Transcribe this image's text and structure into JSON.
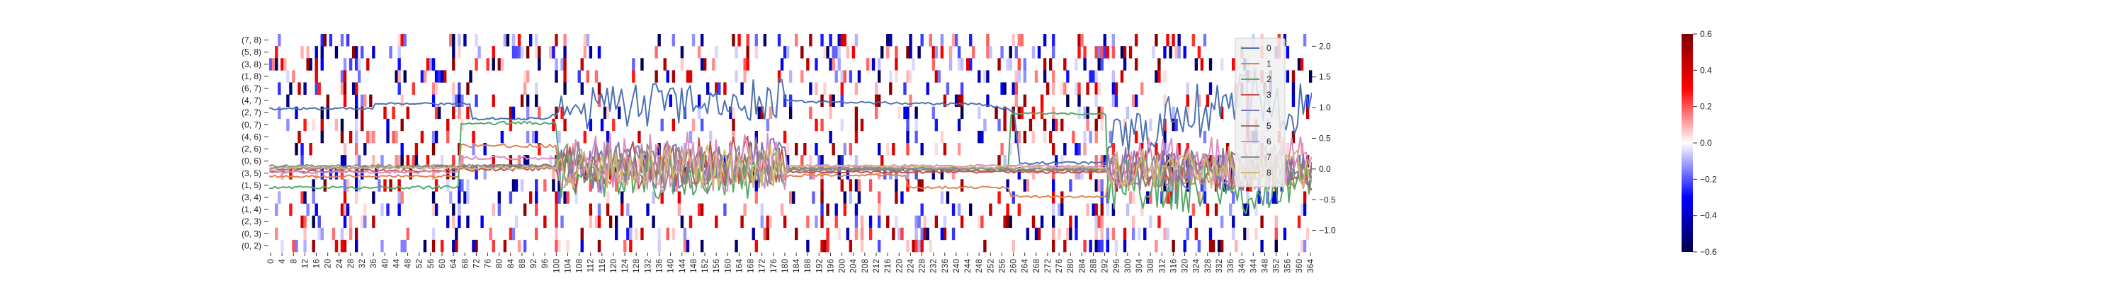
{
  "chart_data": [
    {
      "type": "heatmap",
      "title": "",
      "xlabel": "",
      "ylabel": "",
      "rows": [
        "(7, 8)",
        "(5, 8)",
        "(3, 8)",
        "(1, 8)",
        "(6, 7)",
        "(4, 7)",
        "(2, 7)",
        "(0, 7)",
        "(4, 6)",
        "(2, 6)",
        "(0, 6)",
        "(3, 5)",
        "(1, 5)",
        "(3, 4)",
        "(1, 4)",
        "(2, 3)",
        "(0, 3)",
        "(0, 2)"
      ],
      "x_range": [
        0,
        364
      ],
      "x_tick_step": 4,
      "color_range": [
        -0.6,
        0.6
      ],
      "colormap": "seismic",
      "colorbar_ticks": [
        -0.6,
        -0.4,
        -0.2,
        0.0,
        0.2,
        0.4,
        0.6
      ],
      "colorbar_tick_labels": [
        "−0.6",
        "−0.4",
        "−0.2",
        "0.0",
        "0.2",
        "0.4",
        "0.6"
      ],
      "notes": "sparse matrix, most cells near 0 (white); scattered saturated red/blue cells"
    },
    {
      "type": "line",
      "title": "",
      "xlabel": "",
      "ylabel": "",
      "x_range": [
        0,
        364
      ],
      "ylim": [
        -1.35,
        2.2
      ],
      "y_axis_side": "right",
      "yticks": [
        -1.0,
        -0.5,
        0.0,
        0.5,
        1.0,
        1.5,
        2.0
      ],
      "ytick_labels": [
        "−1.0",
        "−0.5",
        "0.0",
        "0.5",
        "1.0",
        "1.5",
        "2.0"
      ],
      "legend_position": "right",
      "series": [
        {
          "name": "0",
          "color": "#4c72b0",
          "base": [
            [
              0,
              0.98
            ],
            [
              36,
              0.98
            ],
            [
              37,
              1.06
            ],
            [
              70,
              1.06
            ],
            [
              71,
              0.82
            ],
            [
              96,
              0.82
            ],
            [
              99,
              0.88
            ],
            [
              104,
              0.85
            ],
            [
              110,
              1.0
            ],
            [
              175,
              1.15
            ],
            [
              182,
              1.1
            ],
            [
              184,
              1.1
            ],
            [
              250,
              1.05
            ],
            [
              260,
              0.95
            ],
            [
              262,
              0.1
            ],
            [
              292,
              0.1
            ],
            [
              296,
              0.5
            ],
            [
              340,
              1.2
            ],
            [
              364,
              1.0
            ]
          ],
          "amp": [
            [
              0,
              0.02
            ],
            [
              100,
              0.02
            ],
            [
              101,
              0.35
            ],
            [
              180,
              0.35
            ],
            [
              181,
              0.02
            ],
            [
              292,
              0.02
            ],
            [
              293,
              0.4
            ],
            [
              364,
              0.5
            ]
          ]
        },
        {
          "name": "1",
          "color": "#dd8452",
          "base": [
            [
              0,
              -0.12
            ],
            [
              66,
              -0.12
            ],
            [
              67,
              0.38
            ],
            [
              100,
              0.38
            ],
            [
              101,
              -0.02
            ],
            [
              180,
              -0.02
            ],
            [
              181,
              -0.1
            ],
            [
              222,
              -0.1
            ],
            [
              223,
              -0.3
            ],
            [
              258,
              -0.3
            ],
            [
              259,
              -0.45
            ],
            [
              292,
              -0.45
            ],
            [
              293,
              -0.1
            ],
            [
              364,
              -0.15
            ]
          ],
          "amp": [
            [
              0,
              0.02
            ],
            [
              100,
              0.03
            ],
            [
              101,
              0.25
            ],
            [
              180,
              0.25
            ],
            [
              181,
              0.02
            ],
            [
              292,
              0.02
            ],
            [
              293,
              0.2
            ],
            [
              364,
              0.2
            ]
          ]
        },
        {
          "name": "2",
          "color": "#55a868",
          "base": [
            [
              0,
              -0.3
            ],
            [
              66,
              -0.3
            ],
            [
              67,
              0.75
            ],
            [
              100,
              0.75
            ],
            [
              101,
              -0.05
            ],
            [
              180,
              -0.05
            ],
            [
              181,
              0.02
            ],
            [
              258,
              0.02
            ],
            [
              259,
              0.9
            ],
            [
              292,
              0.9
            ],
            [
              293,
              -0.2
            ],
            [
              364,
              -0.3
            ]
          ],
          "amp": [
            [
              0,
              0.02
            ],
            [
              100,
              0.03
            ],
            [
              101,
              0.45
            ],
            [
              180,
              0.45
            ],
            [
              181,
              0.02
            ],
            [
              292,
              0.02
            ],
            [
              293,
              0.45
            ],
            [
              364,
              0.5
            ]
          ]
        },
        {
          "name": "3",
          "color": "#c44e52",
          "base": [
            [
              0,
              -0.05
            ],
            [
              100,
              0.0
            ],
            [
              140,
              0.1
            ],
            [
              180,
              0.15
            ],
            [
              181,
              -0.05
            ],
            [
              292,
              -0.05
            ],
            [
              293,
              0.0
            ],
            [
              364,
              0.0
            ]
          ],
          "amp": [
            [
              0,
              0.02
            ],
            [
              100,
              0.03
            ],
            [
              101,
              0.4
            ],
            [
              180,
              0.4
            ],
            [
              181,
              0.02
            ],
            [
              292,
              0.02
            ],
            [
              293,
              0.3
            ],
            [
              364,
              0.35
            ]
          ]
        },
        {
          "name": "4",
          "color": "#8172b3",
          "base": [
            [
              0,
              0.0
            ],
            [
              100,
              0.05
            ],
            [
              180,
              0.1
            ],
            [
              181,
              0.0
            ],
            [
              292,
              0.0
            ],
            [
              364,
              0.05
            ]
          ],
          "amp": [
            [
              0,
              0.02
            ],
            [
              100,
              0.03
            ],
            [
              101,
              0.4
            ],
            [
              180,
              0.4
            ],
            [
              181,
              0.02
            ],
            [
              292,
              0.02
            ],
            [
              293,
              0.35
            ],
            [
              364,
              0.4
            ]
          ]
        },
        {
          "name": "5",
          "color": "#937860",
          "base": [
            [
              0,
              0.02
            ],
            [
              100,
              0.05
            ],
            [
              180,
              0.05
            ],
            [
              181,
              -0.02
            ],
            [
              292,
              -0.02
            ],
            [
              364,
              0.05
            ]
          ],
          "amp": [
            [
              0,
              0.02
            ],
            [
              100,
              0.03
            ],
            [
              101,
              0.3
            ],
            [
              180,
              0.3
            ],
            [
              181,
              0.02
            ],
            [
              292,
              0.02
            ],
            [
              293,
              0.3
            ],
            [
              364,
              0.3
            ]
          ]
        },
        {
          "name": "6",
          "color": "#da8bc3",
          "base": [
            [
              0,
              -0.05
            ],
            [
              66,
              -0.05
            ],
            [
              67,
              0.18
            ],
            [
              100,
              0.18
            ],
            [
              101,
              0.1
            ],
            [
              180,
              0.1
            ],
            [
              181,
              0.05
            ],
            [
              292,
              0.05
            ],
            [
              293,
              0.1
            ],
            [
              364,
              0.1
            ]
          ],
          "amp": [
            [
              0,
              0.02
            ],
            [
              100,
              0.03
            ],
            [
              101,
              0.5
            ],
            [
              180,
              0.5
            ],
            [
              181,
              0.02
            ],
            [
              292,
              0.02
            ],
            [
              293,
              0.4
            ],
            [
              364,
              0.45
            ]
          ]
        },
        {
          "name": "7",
          "color": "#8c8c8c",
          "base": [
            [
              0,
              0.05
            ],
            [
              100,
              0.05
            ],
            [
              180,
              0.0
            ],
            [
              292,
              0.0
            ],
            [
              364,
              0.0
            ]
          ],
          "amp": [
            [
              0,
              0.02
            ],
            [
              100,
              0.03
            ],
            [
              101,
              0.4
            ],
            [
              180,
              0.4
            ],
            [
              181,
              0.02
            ],
            [
              292,
              0.02
            ],
            [
              293,
              0.3
            ],
            [
              364,
              0.3
            ]
          ]
        },
        {
          "name": "8",
          "color": "#ccb974",
          "base": [
            [
              0,
              0.02
            ],
            [
              100,
              0.02
            ],
            [
              180,
              0.05
            ],
            [
              292,
              0.02
            ],
            [
              364,
              0.02
            ]
          ],
          "amp": [
            [
              0,
              0.02
            ],
            [
              100,
              0.03
            ],
            [
              101,
              0.35
            ],
            [
              180,
              0.35
            ],
            [
              181,
              0.02
            ],
            [
              292,
              0.02
            ],
            [
              293,
              0.35
            ],
            [
              364,
              0.35
            ]
          ]
        }
      ]
    }
  ]
}
